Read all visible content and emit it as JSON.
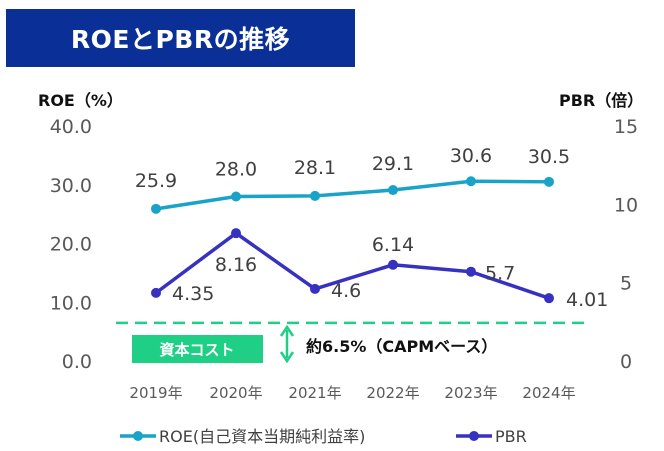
{
  "title": "ROEとPBRの推移",
  "left_axis_label": "ROE（%）",
  "right_axis_label": "PBR（倍）",
  "cost_badge": "資本コスト",
  "capm_note": "約6.5%（CAPMベース）",
  "colors": {
    "title_bg": "#0a2f97",
    "roe": "#1aa3c8",
    "pbr": "#3731c2",
    "cost": "#1fcf86"
  },
  "chart_data": {
    "type": "line",
    "categories": [
      "2019年",
      "2020年",
      "2021年",
      "2022年",
      "2023年",
      "2024年"
    ],
    "series": [
      {
        "name": "ROE(自己資本当期純利益率)",
        "axis": "left",
        "values": [
          25.9,
          28.0,
          28.1,
          29.1,
          30.6,
          30.5
        ],
        "labels": [
          "25.9",
          "28.0",
          "28.1",
          "29.1",
          "30.6",
          "30.5"
        ]
      },
      {
        "name": "PBR",
        "axis": "right",
        "values": [
          4.35,
          8.16,
          4.6,
          6.14,
          5.7,
          4.01
        ],
        "labels": [
          "4.35",
          "8.16",
          "4.6",
          "6.14",
          "5.7",
          "4.01"
        ]
      }
    ],
    "left_axis": {
      "ylim": [
        0,
        40
      ],
      "ticks": [
        "0.0",
        "10.0",
        "20.0",
        "30.0",
        "40.0"
      ]
    },
    "right_axis": {
      "ylim": [
        0,
        15
      ],
      "ticks": [
        "0",
        "5",
        "10",
        "15"
      ]
    },
    "reference_line": {
      "axis": "left",
      "value": 6.5
    },
    "grid": false,
    "legend": "bottom"
  }
}
